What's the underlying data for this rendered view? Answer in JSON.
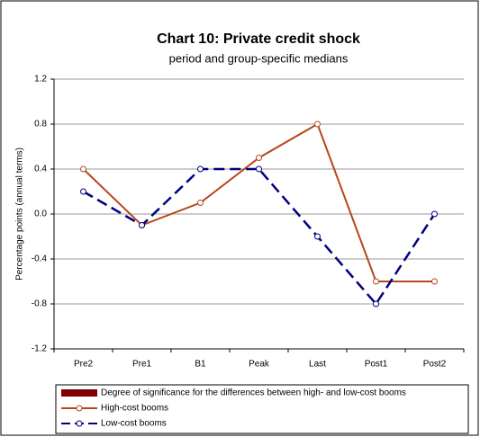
{
  "chart_data": {
    "type": "line",
    "title": "Chart 10: Private credit shock",
    "subtitle": "period and group-specific medians",
    "y_label": "Percentage points (annual terms)",
    "categories": [
      "Pre2",
      "Pre1",
      "B1",
      "Peak",
      "Last",
      "Post1",
      "Post2"
    ],
    "series": [
      {
        "name": "Degree of significance for the differences between high- and low-cost booms",
        "color": "#800000",
        "values": [
          null,
          null,
          null,
          null,
          null,
          null,
          null
        ]
      },
      {
        "name": "High-cost booms",
        "color": "#b5471b",
        "values": [
          0.4,
          -0.1,
          0.1,
          0.5,
          0.8,
          -0.6,
          -0.6
        ]
      },
      {
        "name": "Low-cost booms",
        "color": "#000080",
        "values": [
          0.2,
          -0.1,
          0.4,
          0.4,
          -0.2,
          -0.8,
          0.0
        ]
      }
    ],
    "ylim": [
      -1.2,
      1.2
    ],
    "yticks": [
      -1.2,
      -0.8,
      -0.4,
      {
        "value": 0,
        "label": "0.0"
      },
      0.4,
      0.8,
      1.2
    ],
    "grid": true,
    "legend": "bottom"
  }
}
